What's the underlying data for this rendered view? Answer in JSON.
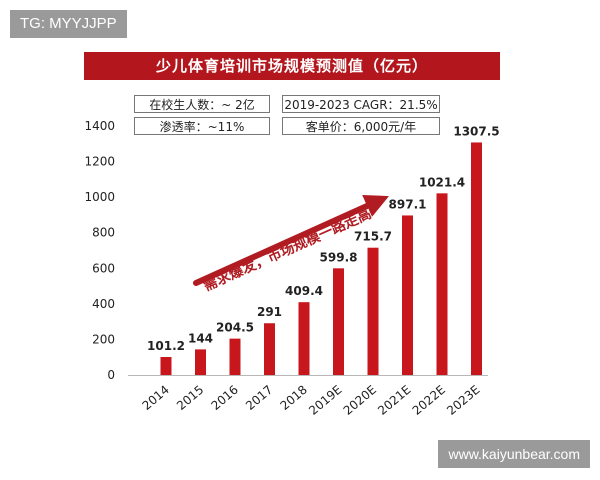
{
  "watermark_top": "TG: MYYJJPP",
  "watermark_bottom": "www.kaiyunbear.com",
  "info": {
    "students": "在校生人数：~ 2亿",
    "cagr": "2019-2023 CAGR：21.5%",
    "penetration": "渗透率：~11%",
    "unit_price": "客单价：6,000元/年"
  },
  "colors": {
    "bar": "#c8161d",
    "title_bg": "#b3161c",
    "arrow": "#b01c22"
  },
  "chart_data": {
    "type": "bar",
    "title": "少儿体育培训市场规模预测值（亿元）",
    "categories": [
      "2014",
      "2015",
      "2016",
      "2017",
      "2018",
      "2019E",
      "2020E",
      "2021E",
      "2022E",
      "2023E"
    ],
    "values": [
      101.2,
      144,
      204.5,
      291,
      409.4,
      599.8,
      715.7,
      897.1,
      1021.4,
      1307.5
    ],
    "value_labels": [
      "101.2",
      "144",
      "204.5",
      "291",
      "409.4",
      "599.8",
      "715.7",
      "897.1",
      "1021.4",
      "1307.5"
    ],
    "yticks": [
      "0",
      "200",
      "400",
      "600",
      "800",
      "1000",
      "1200",
      "1400"
    ],
    "ylim": [
      0,
      1400
    ],
    "annotation": "需求爆发，市场规模一路走高",
    "grid": false,
    "legend": "none"
  }
}
